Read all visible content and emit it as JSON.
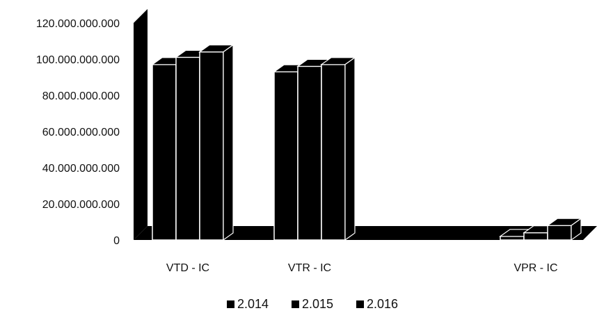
{
  "chart_data": {
    "type": "bar",
    "style": "3d-clustered-column",
    "categories": [
      "VTD - IC",
      "VTR - IC",
      "VPR - IC"
    ],
    "series": [
      {
        "name": "2.014",
        "values": [
          97000000000,
          93000000000,
          2000000000
        ]
      },
      {
        "name": "2.015",
        "values": [
          101000000000,
          96000000000,
          4000000000
        ]
      },
      {
        "name": "2.016",
        "values": [
          104000000000,
          97000000000,
          8000000000
        ]
      }
    ],
    "ylim": [
      0,
      120000000000
    ],
    "yticks": [
      "0",
      "20.000.000.000",
      "40.000.000.000",
      "60.000.000.000",
      "80.000.000.000",
      "100.000.000.000",
      "120.000.000.000"
    ],
    "legend_position": "bottom",
    "grid": false,
    "title": "",
    "xlabel": "",
    "ylabel": "",
    "colors": {
      "bar": "#000000",
      "highlight": "#ffffff",
      "text": "#111111"
    }
  }
}
